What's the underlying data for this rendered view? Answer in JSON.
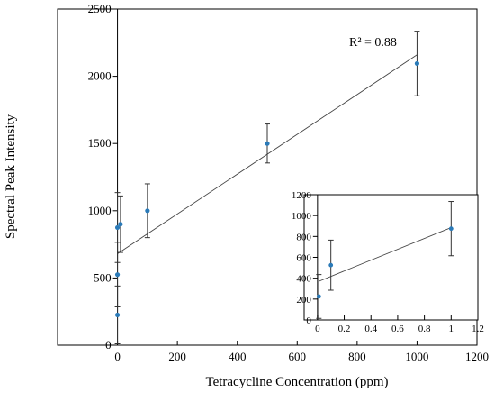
{
  "chart_data": [
    {
      "type": "scatter",
      "xlabel": "Tetracycline Concentration (ppm)",
      "ylabel": "Spectral Peak Intensity",
      "xlim": [
        -200,
        1200
      ],
      "ylim": [
        0,
        2500
      ],
      "xticks": [
        "0",
        "200",
        "400",
        "600",
        "800",
        "1000",
        "1200"
      ],
      "yticks": [
        "0",
        "500",
        "1000",
        "1500",
        "2000",
        "2500"
      ],
      "grid": false,
      "annotation": "R² = 0.88",
      "points": [
        {
          "x": 0,
          "y": 225,
          "err": 215
        },
        {
          "x": 0,
          "y": 525,
          "err": 240
        },
        {
          "x": 0,
          "y": 875,
          "err": 260
        },
        {
          "x": 10,
          "y": 900,
          "err": 210
        },
        {
          "x": 100,
          "y": 1000,
          "err": 200
        },
        {
          "x": 500,
          "y": 1500,
          "err": 145
        },
        {
          "x": 1000,
          "y": 2095,
          "err": 240
        }
      ],
      "fit_line": {
        "x": [
          0,
          1000
        ],
        "y": [
          680,
          2160
        ]
      }
    },
    {
      "type": "scatter",
      "inset": true,
      "xlim": [
        -0.1,
        1.2
      ],
      "ylim": [
        0,
        1200
      ],
      "xticks": [
        "0",
        "0.2",
        "0.4",
        "0.6",
        "0.8",
        "1",
        "1.2"
      ],
      "yticks": [
        "0",
        "200",
        "400",
        "600",
        "800",
        "1000",
        "1200"
      ],
      "grid": false,
      "points": [
        {
          "x": 0.01,
          "y": 225,
          "err": 210
        },
        {
          "x": 0.1,
          "y": 525,
          "err": 240
        },
        {
          "x": 1.0,
          "y": 875,
          "err": 260
        }
      ],
      "fit_line": {
        "x": [
          0.01,
          1.0
        ],
        "y": [
          370,
          885
        ]
      }
    }
  ]
}
